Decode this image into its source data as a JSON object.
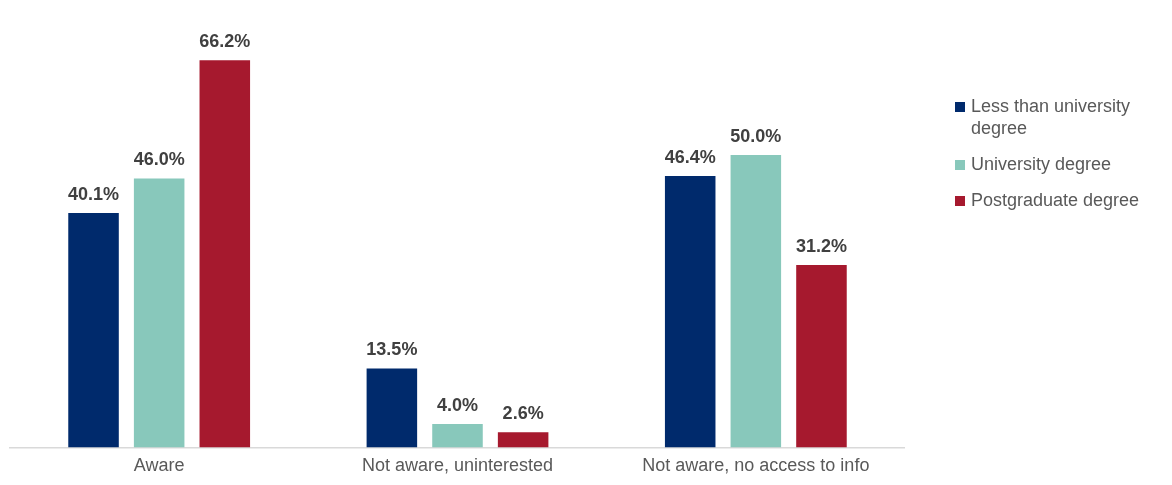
{
  "chart_data": {
    "type": "bar",
    "categories": [
      "Aware",
      "Not aware, uninterested",
      "Not aware, no access to info"
    ],
    "series": [
      {
        "name": "Less than university degree",
        "color": "#002a6c",
        "values": [
          40.1,
          13.5,
          46.4
        ],
        "value_labels": [
          "40.1%",
          "13.5%",
          "46.4%"
        ]
      },
      {
        "name": "University degree",
        "color": "#88c8bb",
        "values": [
          46.0,
          4.0,
          50.0
        ],
        "value_labels": [
          "46.0%",
          "4.0%",
          "50.0%"
        ]
      },
      {
        "name": "Postgraduate degree",
        "color": "#a6192e",
        "values": [
          66.2,
          2.6,
          31.2
        ],
        "value_labels": [
          "66.2%",
          "2.6%",
          "31.2%"
        ]
      }
    ],
    "grid": false,
    "legend": "right"
  }
}
